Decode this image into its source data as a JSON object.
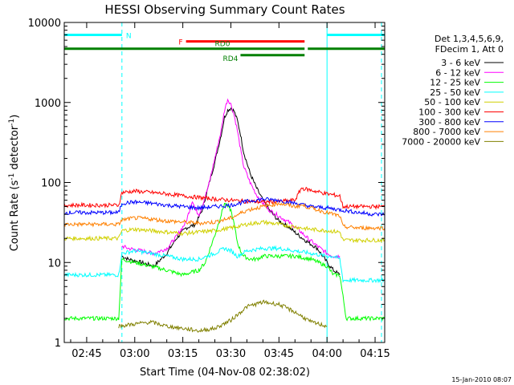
{
  "chart_data": {
    "type": "line",
    "title": "HESSI Observing Summary Count Rates",
    "xlabel": "Start Time (04-Nov-08 02:38:02)",
    "ylabel": "Count Rate (s⁻¹ detector⁻¹)",
    "ylabel_parts": [
      "Count Rate (s",
      "-1",
      " detector",
      "-1",
      ")"
    ],
    "y_scale": "log",
    "ylim": [
      1,
      10000
    ],
    "xlim_minutes": [
      158,
      258
    ],
    "x_tick_values": [
      165,
      180,
      195,
      210,
      225,
      240,
      255
    ],
    "x_tick_labels": [
      "02:45",
      "03:00",
      "03:15",
      "03:30",
      "03:45",
      "04:00",
      "04:15"
    ],
    "y_tick_values": [
      1,
      10,
      100,
      1000,
      10000
    ],
    "y_tick_labels": [
      "1",
      "10",
      "100",
      "1000",
      "10000"
    ],
    "grid": false,
    "legend_position": "right",
    "legend_header": [
      "Det 1,3,4,5,6,9,",
      "FDecim 1, Att 0"
    ],
    "timestamp": "15-Jan-2010 08:07",
    "series": [
      {
        "name": "3 - 6 keV",
        "color": "#000000",
        "x": [
          176,
          178,
          182,
          186,
          190,
          193,
          196,
          199,
          201,
          203,
          205,
          207,
          208,
          209,
          210,
          211,
          212,
          213,
          214,
          216,
          218,
          220,
          222,
          225,
          228,
          231,
          234,
          237,
          240,
          242,
          244
        ],
        "y": [
          12,
          11,
          10,
          9,
          13,
          20,
          27,
          30,
          45,
          90,
          180,
          400,
          650,
          800,
          850,
          780,
          600,
          400,
          240,
          130,
          85,
          60,
          45,
          33,
          28,
          22,
          18,
          15,
          10,
          8,
          7
        ]
      },
      {
        "name": "6 - 12 keV",
        "color": "#ff00ff",
        "x": [
          176,
          178,
          182,
          186,
          190,
          193,
          196,
          198,
          199,
          200,
          201,
          203,
          205,
          207,
          208,
          209,
          210,
          211,
          212,
          213,
          214,
          216,
          218,
          220,
          222,
          225,
          228,
          231,
          234,
          237,
          240,
          242,
          244
        ],
        "y": [
          16,
          15,
          14,
          13,
          15,
          21,
          32,
          60,
          45,
          40,
          50,
          90,
          200,
          450,
          800,
          1100,
          950,
          700,
          450,
          260,
          160,
          100,
          70,
          55,
          45,
          38,
          32,
          26,
          20,
          16,
          13,
          12,
          12
        ]
      },
      {
        "name": "12 - 25 keV",
        "color": "#00ff00",
        "x": [
          158,
          170,
          175,
          176,
          180,
          185,
          190,
          195,
          200,
          202,
          205,
          207,
          208,
          210,
          211,
          212,
          213,
          214,
          216,
          218,
          220,
          225,
          230,
          235,
          240,
          242,
          244,
          246,
          250,
          255,
          258
        ],
        "y": [
          2,
          2,
          2,
          11,
          10,
          9,
          8,
          7,
          8,
          10,
          22,
          40,
          55,
          45,
          30,
          18,
          14,
          12,
          11,
          11,
          12,
          12,
          12,
          11,
          9,
          7,
          7,
          2,
          2,
          2,
          2
        ]
      },
      {
        "name": "25 - 50 keV",
        "color": "#00ffff",
        "x": [
          158,
          170,
          175,
          176,
          180,
          185,
          190,
          195,
          200,
          205,
          208,
          210,
          212,
          215,
          220,
          225,
          230,
          235,
          240,
          242,
          244,
          245,
          250,
          255,
          258
        ],
        "y": [
          7,
          7,
          7,
          13,
          14,
          13,
          12,
          11,
          11,
          13,
          15,
          14,
          12,
          14,
          15,
          15,
          14,
          13,
          12,
          12,
          11,
          6,
          6,
          6,
          6
        ]
      },
      {
        "name": "50 - 100 keV",
        "color": "#d0d000",
        "x": [
          158,
          170,
          175,
          176,
          180,
          185,
          190,
          195,
          200,
          205,
          210,
          215,
          220,
          225,
          230,
          232,
          235,
          240,
          244,
          245,
          250,
          255,
          258
        ],
        "y": [
          20,
          20,
          20,
          25,
          26,
          25,
          24,
          23,
          24,
          25,
          27,
          30,
          32,
          30,
          28,
          27,
          26,
          25,
          24,
          19,
          19,
          19,
          19
        ]
      },
      {
        "name": "100 - 300 keV",
        "color": "#ff0000",
        "x": [
          158,
          170,
          175,
          176,
          180,
          185,
          190,
          195,
          200,
          205,
          210,
          215,
          220,
          225,
          230,
          232,
          235,
          240,
          244,
          245,
          250,
          255,
          258
        ],
        "y": [
          52,
          52,
          52,
          75,
          78,
          75,
          72,
          68,
          65,
          62,
          60,
          58,
          57,
          58,
          60,
          85,
          80,
          72,
          68,
          50,
          50,
          50,
          50
        ]
      },
      {
        "name": "300 - 800 keV",
        "color": "#0000ff",
        "x": [
          158,
          170,
          175,
          176,
          180,
          185,
          190,
          195,
          200,
          205,
          210,
          215,
          220,
          225,
          230,
          235,
          240,
          245,
          250,
          255,
          258
        ],
        "y": [
          42,
          42,
          42,
          55,
          57,
          55,
          52,
          50,
          48,
          50,
          52,
          58,
          62,
          60,
          55,
          50,
          48,
          45,
          42,
          40,
          40
        ]
      },
      {
        "name": "800 - 7000 keV",
        "color": "#ff8000",
        "x": [
          158,
          170,
          175,
          176,
          180,
          185,
          190,
          195,
          200,
          205,
          210,
          215,
          220,
          225,
          230,
          232,
          235,
          240,
          244,
          245,
          250,
          255,
          258
        ],
        "y": [
          30,
          30,
          30,
          34,
          36,
          35,
          33,
          32,
          31,
          32,
          36,
          45,
          50,
          55,
          50,
          52,
          48,
          42,
          38,
          28,
          27,
          27,
          27
        ]
      },
      {
        "name": "7000 - 20000 keV",
        "color": "#808000",
        "x": [
          175,
          180,
          185,
          190,
          195,
          200,
          205,
          210,
          215,
          220,
          225,
          230,
          235,
          240
        ],
        "y": [
          1.6,
          1.7,
          1.8,
          1.6,
          1.5,
          1.4,
          1.5,
          1.9,
          2.8,
          3.2,
          3.0,
          2.4,
          1.8,
          1.6
        ]
      }
    ],
    "state_bars": [
      {
        "label": "N",
        "color": "#00ffff",
        "level": 7000,
        "segments": [
          [
            158,
            176
          ],
          [
            240,
            258
          ]
        ]
      },
      {
        "label": "F",
        "color": "#ff0000",
        "level": 5800,
        "segments": [
          [
            196,
            233
          ]
        ]
      },
      {
        "label": "RD0",
        "color": "#008000",
        "level": 4700,
        "segments": [
          [
            158,
            233
          ],
          [
            234,
            258
          ]
        ]
      },
      {
        "label": "RD4",
        "color": "#008000",
        "level": 3900,
        "segments": [
          [
            213,
            233
          ]
        ]
      }
    ],
    "vertical_lines": [
      {
        "color": "#00ffff",
        "style": "solid",
        "x": 158
      },
      {
        "color": "#00ffff",
        "style": "dashed",
        "x": 176
      },
      {
        "color": "#00ffff",
        "style": "solid",
        "x": 240
      },
      {
        "color": "#00ffff",
        "style": "dashed",
        "x": 257
      }
    ]
  }
}
